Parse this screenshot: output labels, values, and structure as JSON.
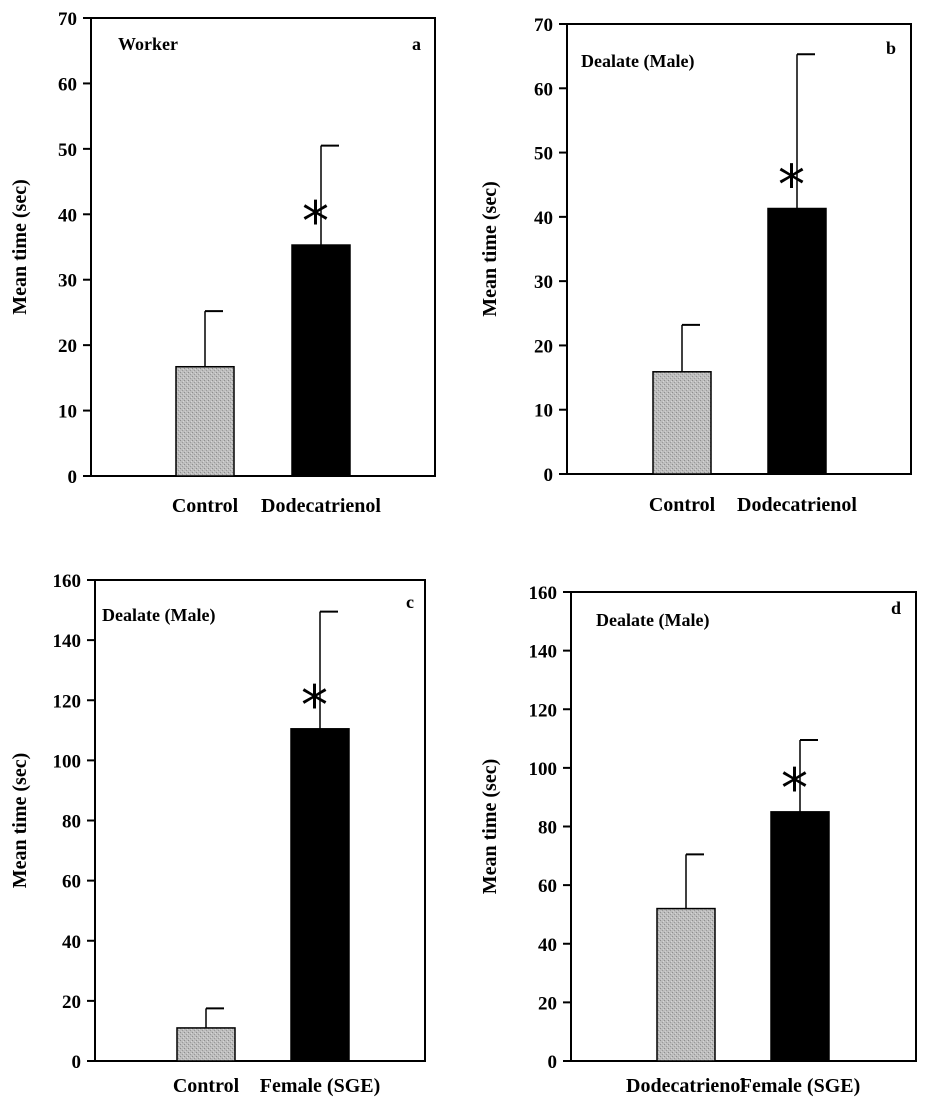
{
  "chart_data": [
    {
      "type": "bar",
      "title": "Worker",
      "panel_label": "a",
      "ylabel": "Mean time (sec)",
      "categories": [
        "Control",
        "Dodecatrienol"
      ],
      "values": [
        16.7,
        35.3
      ],
      "error": [
        8.5,
        15.2
      ],
      "bar_colors": [
        "#b8b8b8",
        "#000000"
      ],
      "significance": [
        "",
        "*"
      ],
      "ylim": [
        0,
        70
      ],
      "yticks": [
        0,
        10,
        20,
        30,
        40,
        50,
        60,
        70
      ]
    },
    {
      "type": "bar",
      "title": "Dealate (Male)",
      "panel_label": "b",
      "ylabel": "Mean time (sec)",
      "categories": [
        "Control",
        "Dodecatrienol"
      ],
      "values": [
        15.9,
        41.3
      ],
      "error": [
        7.3,
        24.0
      ],
      "bar_colors": [
        "#b8b8b8",
        "#000000"
      ],
      "significance": [
        "",
        "*"
      ],
      "ylim": [
        0,
        70
      ],
      "yticks": [
        0,
        10,
        20,
        30,
        40,
        50,
        60,
        70
      ]
    },
    {
      "type": "bar",
      "title": "Dealate (Male)",
      "panel_label": "c",
      "ylabel": "Mean time (sec)",
      "categories": [
        "Control",
        "Female (SGE)"
      ],
      "values": [
        11,
        110.5
      ],
      "error": [
        6.5,
        39.0
      ],
      "bar_colors": [
        "#b8b8b8",
        "#000000"
      ],
      "significance": [
        "",
        "*"
      ],
      "ylim": [
        0,
        160
      ],
      "yticks": [
        0,
        20,
        40,
        60,
        80,
        100,
        120,
        140,
        160
      ]
    },
    {
      "type": "bar",
      "title": "Dealate (Male)",
      "panel_label": "d",
      "ylabel": "Mean time (sec)",
      "categories": [
        "Dodecatrienol",
        "Female (SGE)"
      ],
      "values": [
        52,
        85
      ],
      "error": [
        18.5,
        24.5
      ],
      "bar_colors": [
        "#b8b8b8",
        "#000000"
      ],
      "significance": [
        "",
        "*"
      ],
      "ylim": [
        0,
        160
      ],
      "yticks": [
        0,
        20,
        40,
        60,
        80,
        100,
        120,
        140,
        160
      ]
    }
  ]
}
